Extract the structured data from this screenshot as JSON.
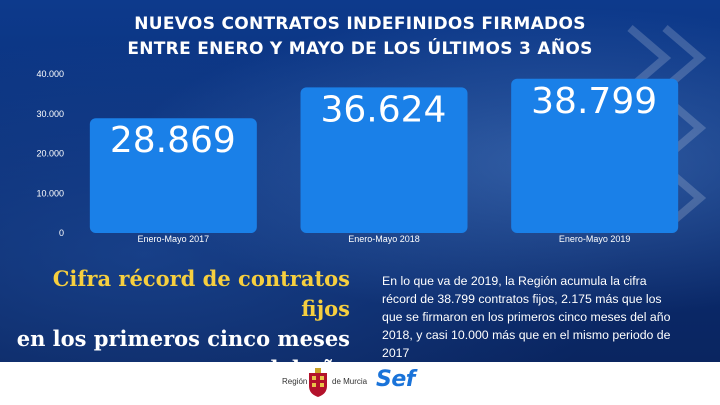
{
  "title": {
    "line1": "NUEVOS CONTRATOS INDEFINIDOS FIRMADOS",
    "line2": "ENTRE ENERO Y MAYO DE LOS ÚLTIMOS 3 AÑOS"
  },
  "chart_data": {
    "type": "bar",
    "categories": [
      "Enero-Mayo 2017",
      "Enero-Mayo 2018",
      "Enero-Mayo 2019"
    ],
    "values": [
      28869,
      36624,
      38799
    ],
    "value_labels": [
      "28.869",
      "36.624",
      "38.799"
    ],
    "ylim": [
      0,
      40000
    ],
    "yticks": [
      0,
      10000,
      20000,
      30000,
      40000
    ],
    "ytick_labels": [
      "0",
      "10.000",
      "20.000",
      "30.000",
      "40.000"
    ],
    "bar_color": "#1a80e8",
    "grid": false
  },
  "headline": {
    "line1": "Cifra récord de contratos fijos",
    "line2": "en los primeros cinco meses",
    "line3": "del año"
  },
  "body": "En lo que va de 2019, la Región acumula la cifra récord de 38.799 contratos fijos, 2.175 más que los que se firmaron en los primeros cinco meses del año 2018, y casi 10.000 más que en el mismo periodo de 2017",
  "footer": {
    "region_label": "Región",
    "region_suffix": "de Murcia",
    "sef_logo": "Sef"
  },
  "colors": {
    "headline_accent": "#f6cf3f",
    "background": "#0b2a66",
    "sef_blue": "#1a73d9"
  }
}
